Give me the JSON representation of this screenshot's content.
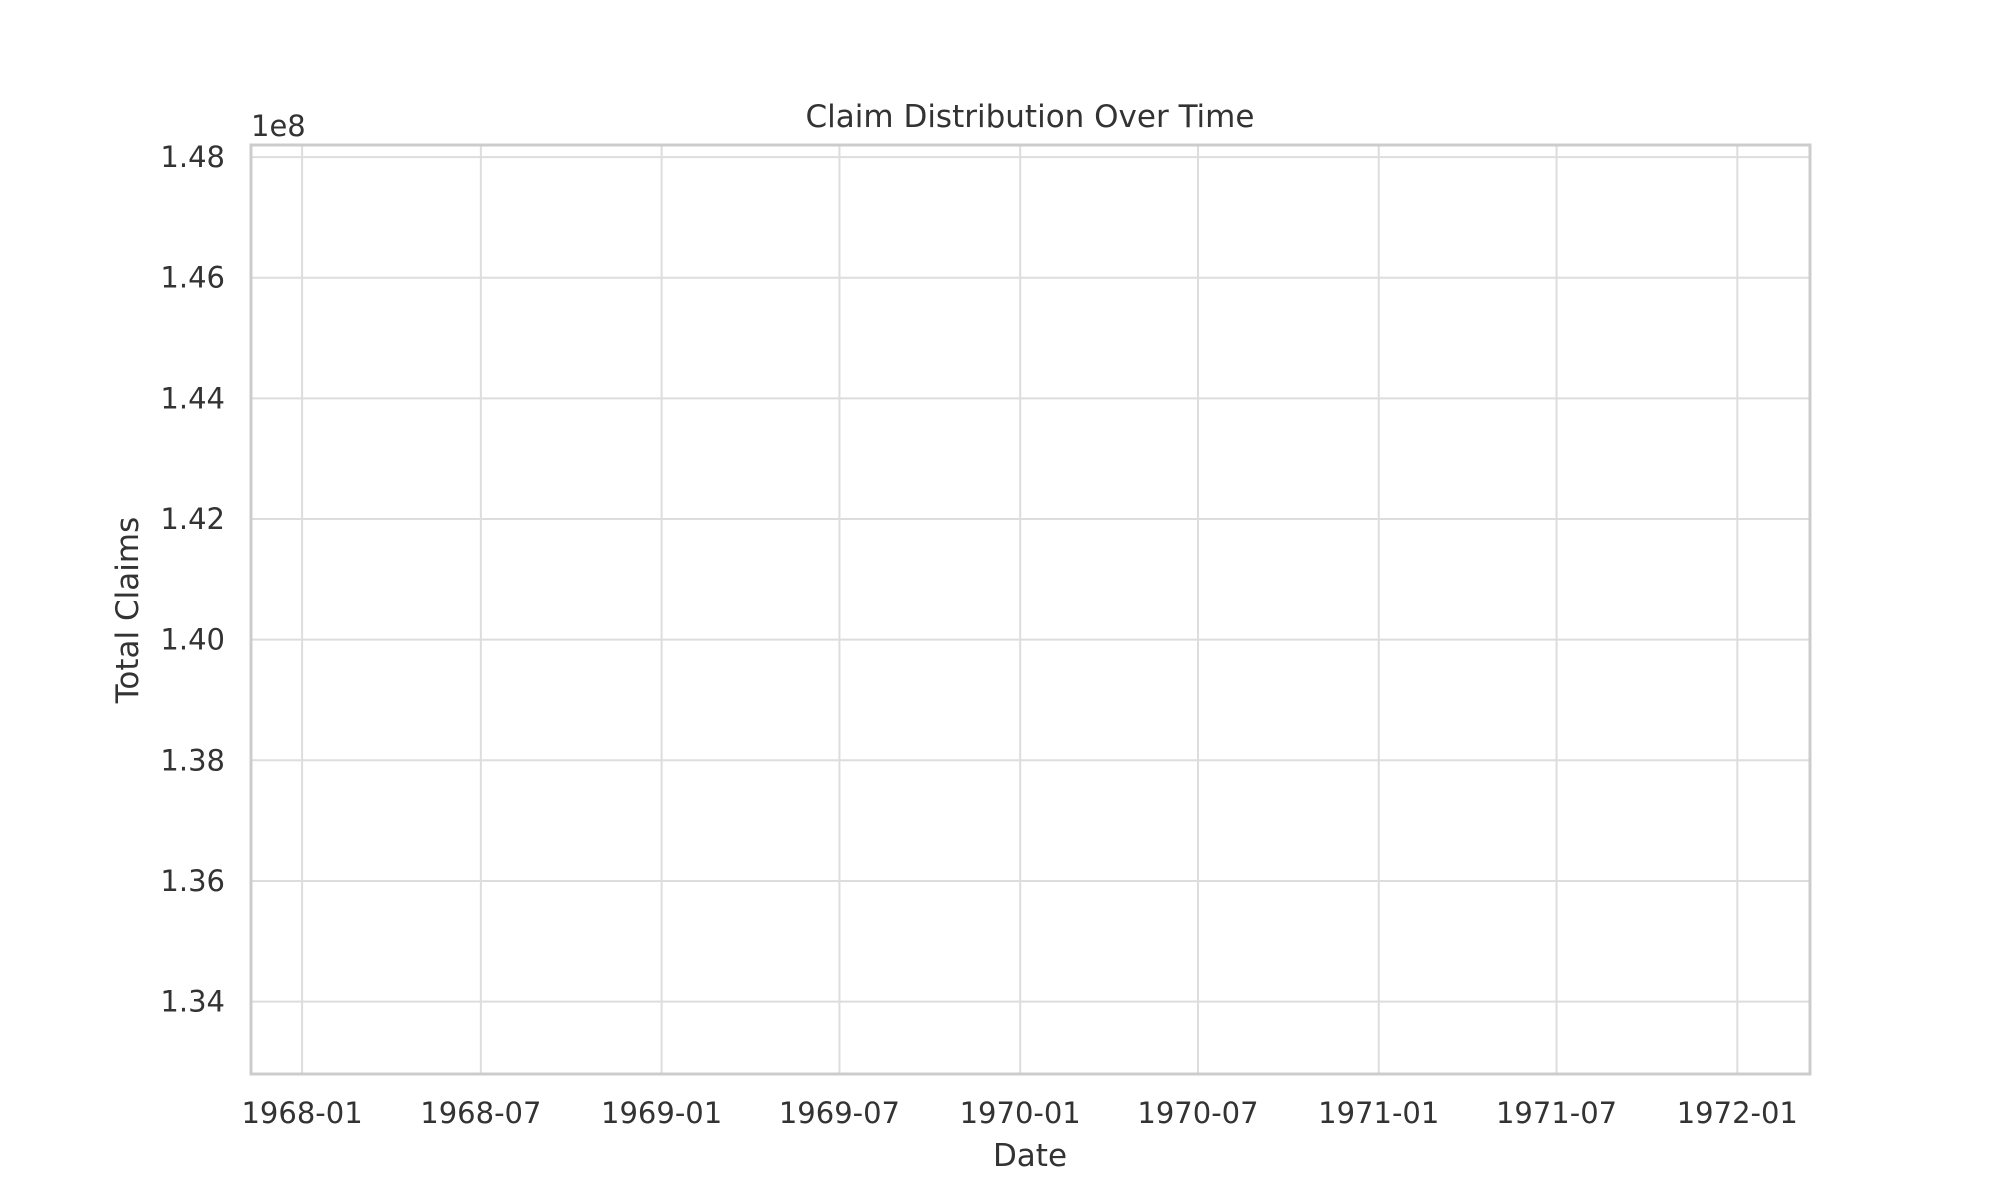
{
  "chart_data": {
    "type": "line",
    "title": "Claim Distribution Over Time",
    "xlabel": "Date",
    "ylabel": "Total Claims",
    "y_offset_label": "1e8",
    "x_axis_type": "date",
    "xlim": [
      "1967-11-10",
      "1972-03-15"
    ],
    "ylim": [
      132800000,
      148200000
    ],
    "x_ticks": [
      {
        "date": "1968-01-01",
        "label": "1968-01"
      },
      {
        "date": "1968-07-01",
        "label": "1968-07"
      },
      {
        "date": "1969-01-01",
        "label": "1969-01"
      },
      {
        "date": "1969-07-01",
        "label": "1969-07"
      },
      {
        "date": "1970-01-01",
        "label": "1970-01"
      },
      {
        "date": "1970-07-01",
        "label": "1970-07"
      },
      {
        "date": "1971-01-01",
        "label": "1971-01"
      },
      {
        "date": "1971-07-01",
        "label": "1971-07"
      },
      {
        "date": "1972-01-01",
        "label": "1972-01"
      }
    ],
    "y_ticks": [
      {
        "value": 134000000,
        "label": "1.34"
      },
      {
        "value": 136000000,
        "label": "1.36"
      },
      {
        "value": 138000000,
        "label": "1.38"
      },
      {
        "value": 140000000,
        "label": "1.40"
      },
      {
        "value": 142000000,
        "label": "1.42"
      },
      {
        "value": 144000000,
        "label": "1.44"
      },
      {
        "value": 146000000,
        "label": "1.46"
      },
      {
        "value": 148000000,
        "label": "1.48"
      }
    ],
    "grid": true,
    "series": [],
    "colors": {
      "grid": "#dddddd",
      "frame": "#cccccc",
      "text": "#333333",
      "background": "#ffffff"
    }
  }
}
